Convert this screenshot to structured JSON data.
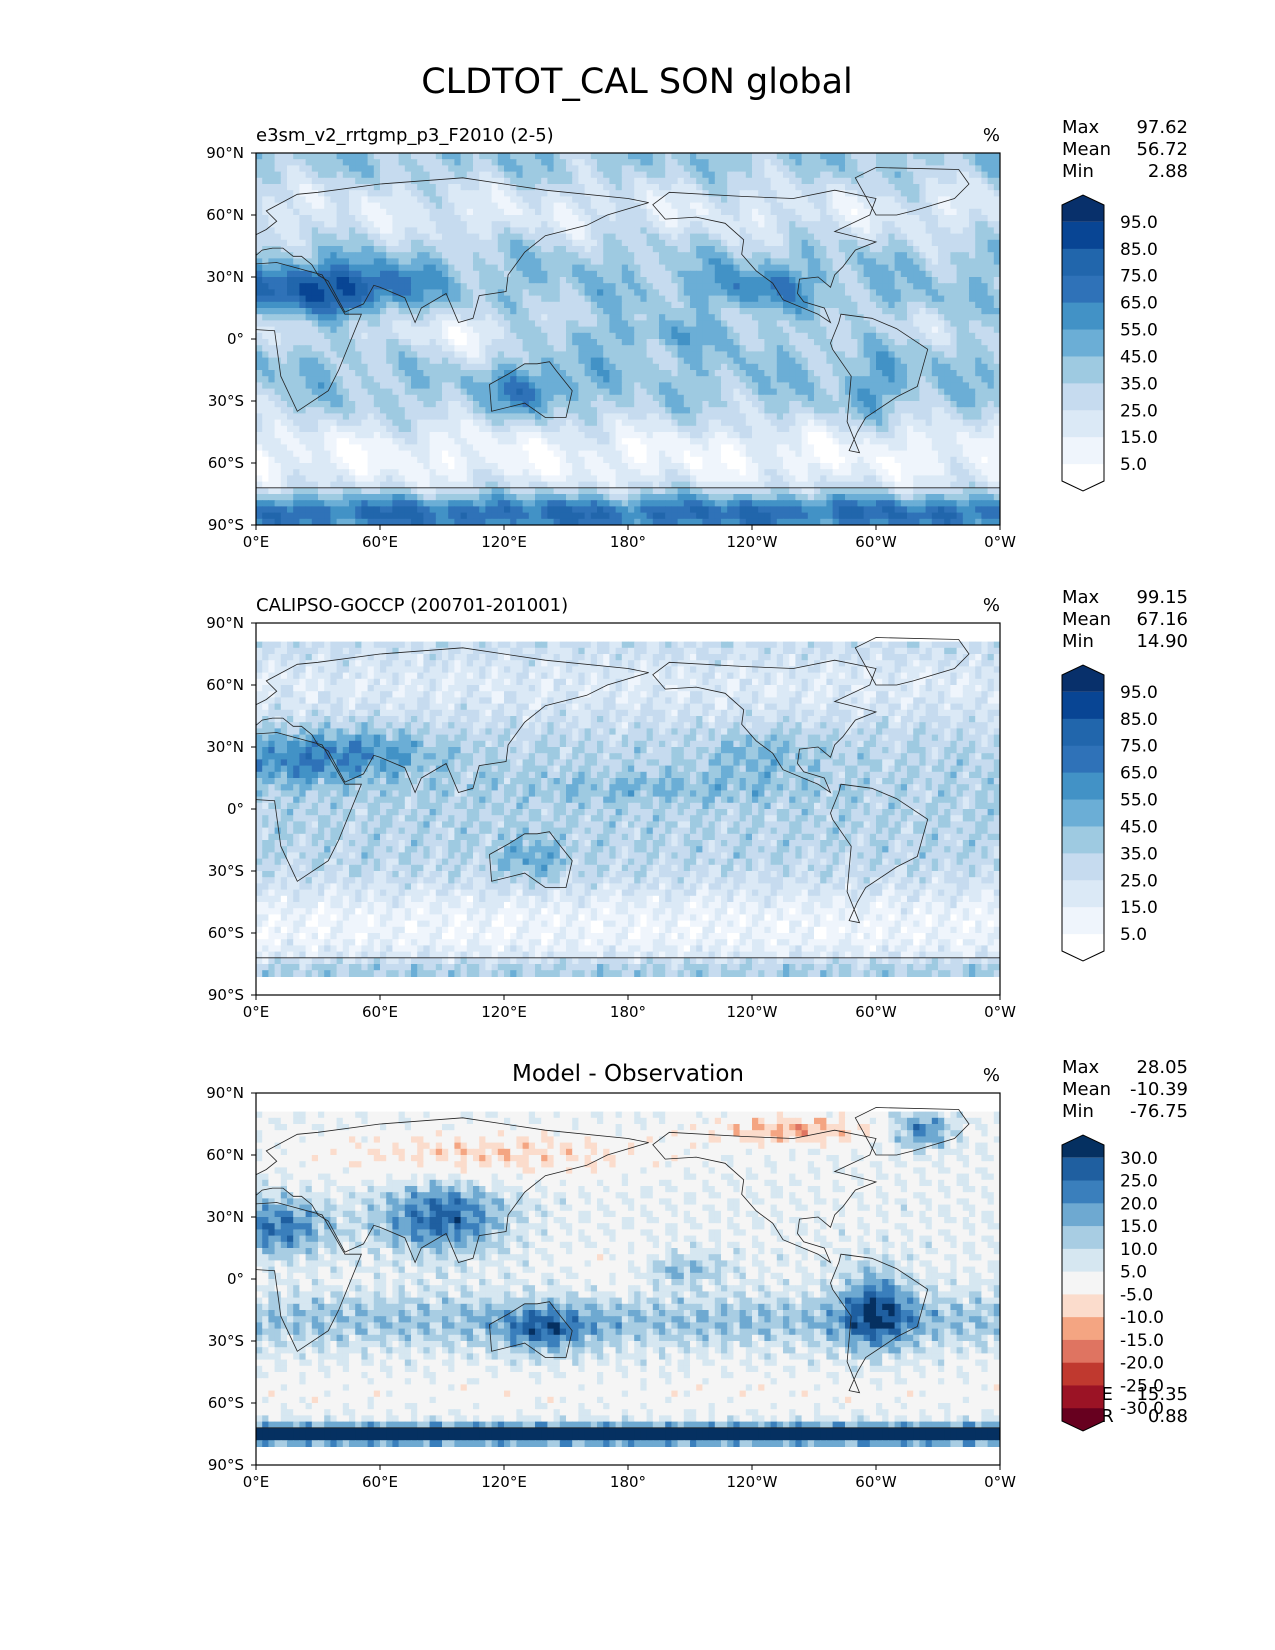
{
  "title": "CLDTOT_CAL SON global",
  "panels": [
    {
      "title_left": "e3sm_v2_rrtgmp_p3_F2010 (2-5)",
      "title_center": "",
      "units": "%",
      "stats": [
        [
          "Max",
          "97.62"
        ],
        [
          "Mean",
          "56.72"
        ],
        [
          "Min",
          "2.88"
        ]
      ],
      "extra_stats": [],
      "colorbar": {
        "labels": [
          "95.0",
          "85.0",
          "75.0",
          "65.0",
          "55.0",
          "45.0",
          "35.0",
          "25.0",
          "15.0",
          "5.0"
        ],
        "colors": [
          "#08306b",
          "#084594",
          "#2166ac",
          "#2f72b8",
          "#4292c6",
          "#6baed6",
          "#9ecae1",
          "#c6dbef",
          "#dbe9f6",
          "#eff5fc",
          "#ffffff"
        ]
      },
      "field": "model"
    },
    {
      "title_left": "CALIPSO-GOCCP (200701-201001)",
      "title_center": "",
      "units": "%",
      "stats": [
        [
          "Max",
          "99.15"
        ],
        [
          "Mean",
          "67.16"
        ],
        [
          "Min",
          "14.90"
        ]
      ],
      "extra_stats": [],
      "colorbar": {
        "labels": [
          "95.0",
          "85.0",
          "75.0",
          "65.0",
          "55.0",
          "45.0",
          "35.0",
          "25.0",
          "15.0",
          "5.0"
        ],
        "colors": [
          "#08306b",
          "#084594",
          "#2166ac",
          "#2f72b8",
          "#4292c6",
          "#6baed6",
          "#9ecae1",
          "#c6dbef",
          "#dbe9f6",
          "#eff5fc",
          "#ffffff"
        ]
      },
      "field": "obs"
    },
    {
      "title_left": "",
      "title_center": "Model - Observation",
      "units": "%",
      "stats": [
        [
          "Max",
          "28.05"
        ],
        [
          "Mean",
          "-10.39"
        ],
        [
          "Min",
          "-76.75"
        ]
      ],
      "extra_stats": [
        [
          "RMSE",
          "15.35"
        ],
        [
          "CORR",
          "0.88"
        ]
      ],
      "colorbar": {
        "labels": [
          "30.0",
          "25.0",
          "20.0",
          "15.0",
          "10.0",
          "5.0",
          "-5.0",
          "-10.0",
          "-15.0",
          "-20.0",
          "-25.0",
          "-30.0"
        ],
        "colors": [
          "#053061",
          "#1f5fa0",
          "#3a7fbc",
          "#6ea9d1",
          "#a8cde3",
          "#d6e7f1",
          "#f5f5f5",
          "#fbdccc",
          "#f4a582",
          "#df7461",
          "#c0392f",
          "#9b1325",
          "#67001f"
        ]
      },
      "field": "diff"
    }
  ],
  "axes": {
    "xticks": [
      "0°E",
      "60°E",
      "120°E",
      "180°",
      "120°W",
      "60°W",
      "0°W"
    ],
    "yticks": [
      "90°N",
      "60°N",
      "30°N",
      "0°",
      "30°S",
      "60°S",
      "90°S"
    ],
    "xlim": [
      0,
      360
    ],
    "ylim": [
      -90,
      90
    ]
  },
  "chart_data": [
    {
      "type": "heatmap",
      "title": "e3sm_v2_rrtgmp_p3_F2010 (2-5)",
      "units": "%",
      "xlim": [
        0,
        360
      ],
      "ylim": [
        -90,
        90
      ],
      "levels": [
        5,
        15,
        25,
        35,
        45,
        55,
        65,
        75,
        85,
        95
      ],
      "max": 97.62,
      "mean": 56.72,
      "min": 2.88
    },
    {
      "type": "heatmap",
      "title": "CALIPSO-GOCCP (200701-201001)",
      "units": "%",
      "xlim": [
        0,
        360
      ],
      "ylim": [
        -90,
        90
      ],
      "levels": [
        5,
        15,
        25,
        35,
        45,
        55,
        65,
        75,
        85,
        95
      ],
      "max": 99.15,
      "mean": 67.16,
      "min": 14.9
    },
    {
      "type": "heatmap",
      "title": "Model - Observation",
      "units": "%",
      "xlim": [
        0,
        360
      ],
      "ylim": [
        -90,
        90
      ],
      "levels": [
        -30,
        -25,
        -20,
        -15,
        -10,
        -5,
        5,
        10,
        15,
        20,
        25,
        30
      ],
      "max": 28.05,
      "mean": -10.39,
      "min": -76.75,
      "rmse": 15.35,
      "corr": 0.88
    }
  ]
}
